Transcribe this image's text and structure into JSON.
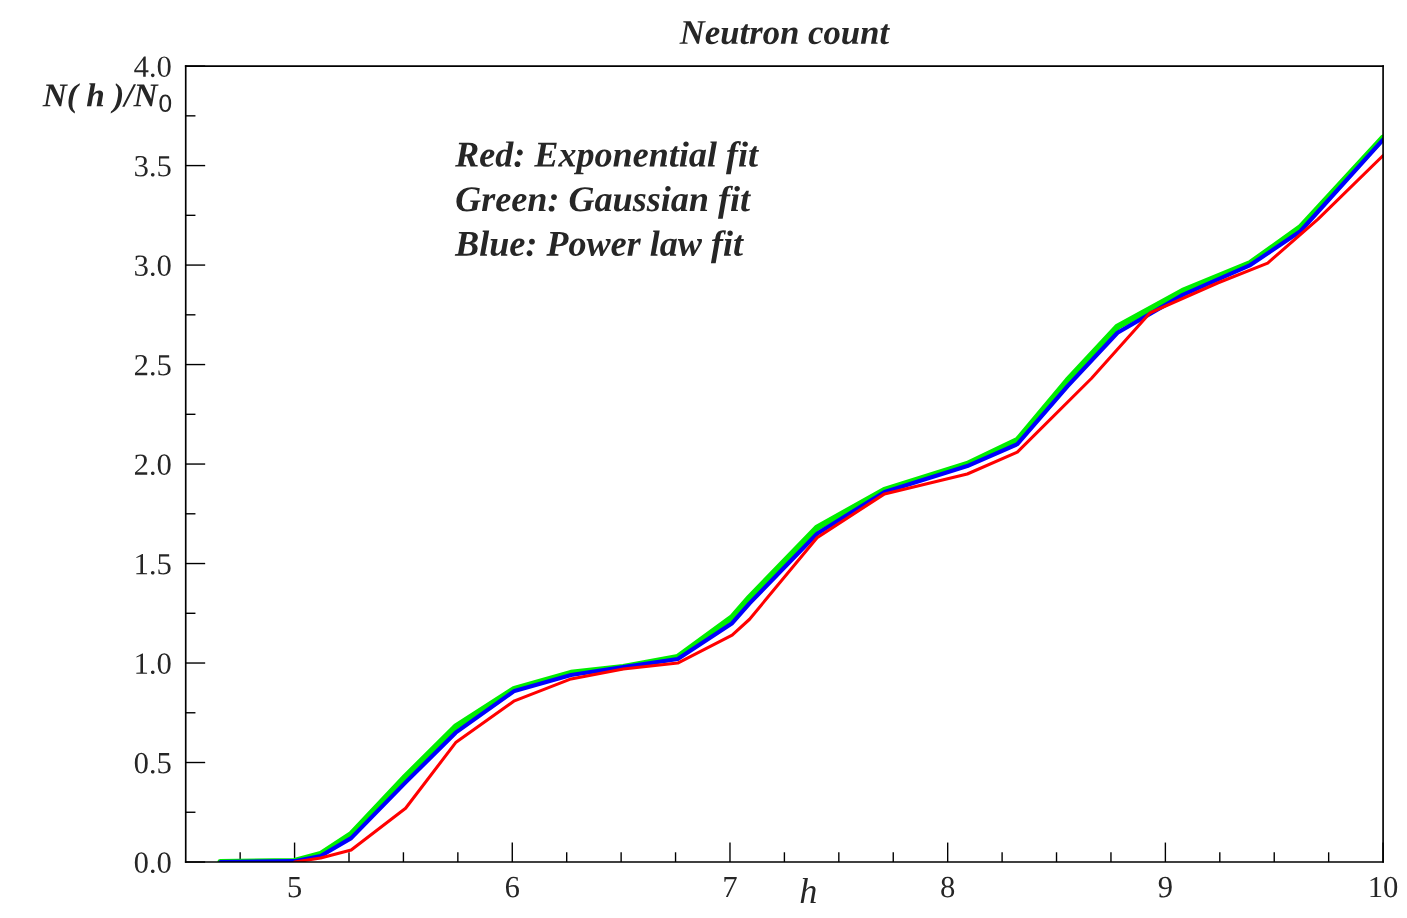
{
  "chart_data": {
    "type": "line",
    "title": "Neutron count",
    "xlabel": "h",
    "ylabel": "N( h )/N$_{0}$",
    "xlim": [
      4.5,
      10
    ],
    "xticks": [
      {
        "value": 4.75,
        "label": null
      },
      5,
      {
        "value": 5.25,
        "label": null
      },
      {
        "value": 5.5,
        "label": null
      },
      {
        "value": 5.75,
        "label": null
      },
      6,
      {
        "value": 6.25,
        "label": null
      },
      {
        "value": 6.5,
        "label": null
      },
      {
        "value": 6.75,
        "label": null
      },
      7,
      {
        "value": 7.25,
        "label": null
      },
      {
        "value": 7.5,
        "label": null
      },
      {
        "value": 7.75,
        "label": null
      },
      8,
      {
        "value": 8.25,
        "label": null
      },
      {
        "value": 8.5,
        "label": null
      },
      {
        "value": 8.75,
        "label": null
      },
      9,
      {
        "value": 9.25,
        "label": null
      },
      {
        "value": 9.5,
        "label": null
      },
      {
        "value": 9.75,
        "label": null
      },
      10
    ],
    "ylim": [
      0,
      4
    ],
    "yticks": [
      {
        "value": 0,
        "label": "0.0"
      },
      {
        "value": 0.25,
        "label": null
      },
      {
        "value": 0.5,
        "label": "0.5"
      },
      {
        "value": 0.75,
        "label": null
      },
      {
        "value": 1,
        "label": "1.0"
      },
      {
        "value": 1.25,
        "label": null
      },
      {
        "value": 1.5,
        "label": "1.5"
      },
      {
        "value": 1.75,
        "label": null
      },
      {
        "value": 2,
        "label": "2.0"
      },
      {
        "value": 2.25,
        "label": null
      },
      {
        "value": 2.5,
        "label": "2.5"
      },
      {
        "value": 2.75,
        "label": null
      },
      {
        "value": 3,
        "label": "3.0"
      },
      {
        "value": 3.25,
        "label": null
      },
      {
        "value": 3.5,
        "label": "3.5"
      },
      {
        "value": 3.75,
        "label": null
      },
      {
        "value": 4,
        "label": "4.0"
      }
    ],
    "grid": false,
    "legend": false,
    "marker": "none",
    "line_style": "solid",
    "annotations": [
      "Red: Exponential fit",
      "Green: Gaussian fit",
      "Blue: Power law fit"
    ],
    "series": [
      {
        "color": "#00ee00",
        "x": [
          4.66,
          5.0,
          5.12,
          5.26,
          5.51,
          5.74,
          6.01,
          6.27,
          6.51,
          6.76,
          7.01,
          7.09,
          7.4,
          7.71,
          8.09,
          8.32,
          8.55,
          8.78,
          9.08,
          9.39,
          9.62,
          10.0
        ],
        "values": [
          0,
          0.005,
          0.04,
          0.14,
          0.43,
          0.68,
          0.87,
          0.95,
          0.98,
          1.03,
          1.23,
          1.33,
          1.68,
          1.87,
          2.0,
          2.12,
          2.42,
          2.69,
          2.87,
          3.01,
          3.19,
          3.64
        ]
      },
      {
        "color": "#0000ff",
        "x": [
          4.66,
          5.0,
          5.12,
          5.26,
          5.51,
          5.74,
          6.01,
          6.27,
          6.51,
          6.76,
          7.01,
          7.09,
          7.4,
          7.71,
          8.09,
          8.32,
          8.55,
          8.78,
          9.08,
          9.39,
          9.62,
          10.0
        ],
        "values": [
          0,
          0.004,
          0.03,
          0.12,
          0.4,
          0.65,
          0.86,
          0.94,
          0.98,
          1.02,
          1.2,
          1.3,
          1.65,
          1.86,
          1.99,
          2.1,
          2.39,
          2.66,
          2.85,
          3.0,
          3.17,
          3.63
        ]
      },
      {
        "color": "#ff0000",
        "x": [
          5.0,
          5.12,
          5.26,
          5.51,
          5.74,
          6.01,
          6.27,
          6.51,
          6.76,
          7.01,
          7.09,
          7.4,
          7.71,
          8.09,
          8.32,
          8.66,
          8.93,
          9.24,
          9.47,
          9.7,
          10.0
        ],
        "values": [
          0,
          0.02,
          0.06,
          0.27,
          0.6,
          0.81,
          0.92,
          0.97,
          1.0,
          1.14,
          1.22,
          1.63,
          1.85,
          1.95,
          2.06,
          2.43,
          2.76,
          2.91,
          3.01,
          3.23,
          3.55
        ]
      }
    ]
  }
}
